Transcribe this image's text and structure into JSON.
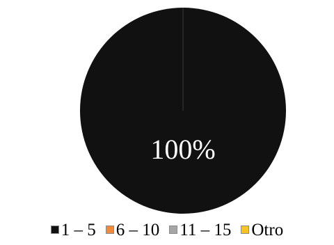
{
  "chart_data": {
    "type": "pie",
    "categories": [
      "1 – 5",
      "6 – 10",
      "11 – 15",
      "Otro"
    ],
    "values": [
      100,
      0,
      0,
      0
    ],
    "data_labels": [
      "100%",
      "",
      "",
      ""
    ],
    "colors": [
      "#111111",
      "#f08b3d",
      "#a6a6a6",
      "#f7c325"
    ],
    "legend_position": "bottom"
  }
}
